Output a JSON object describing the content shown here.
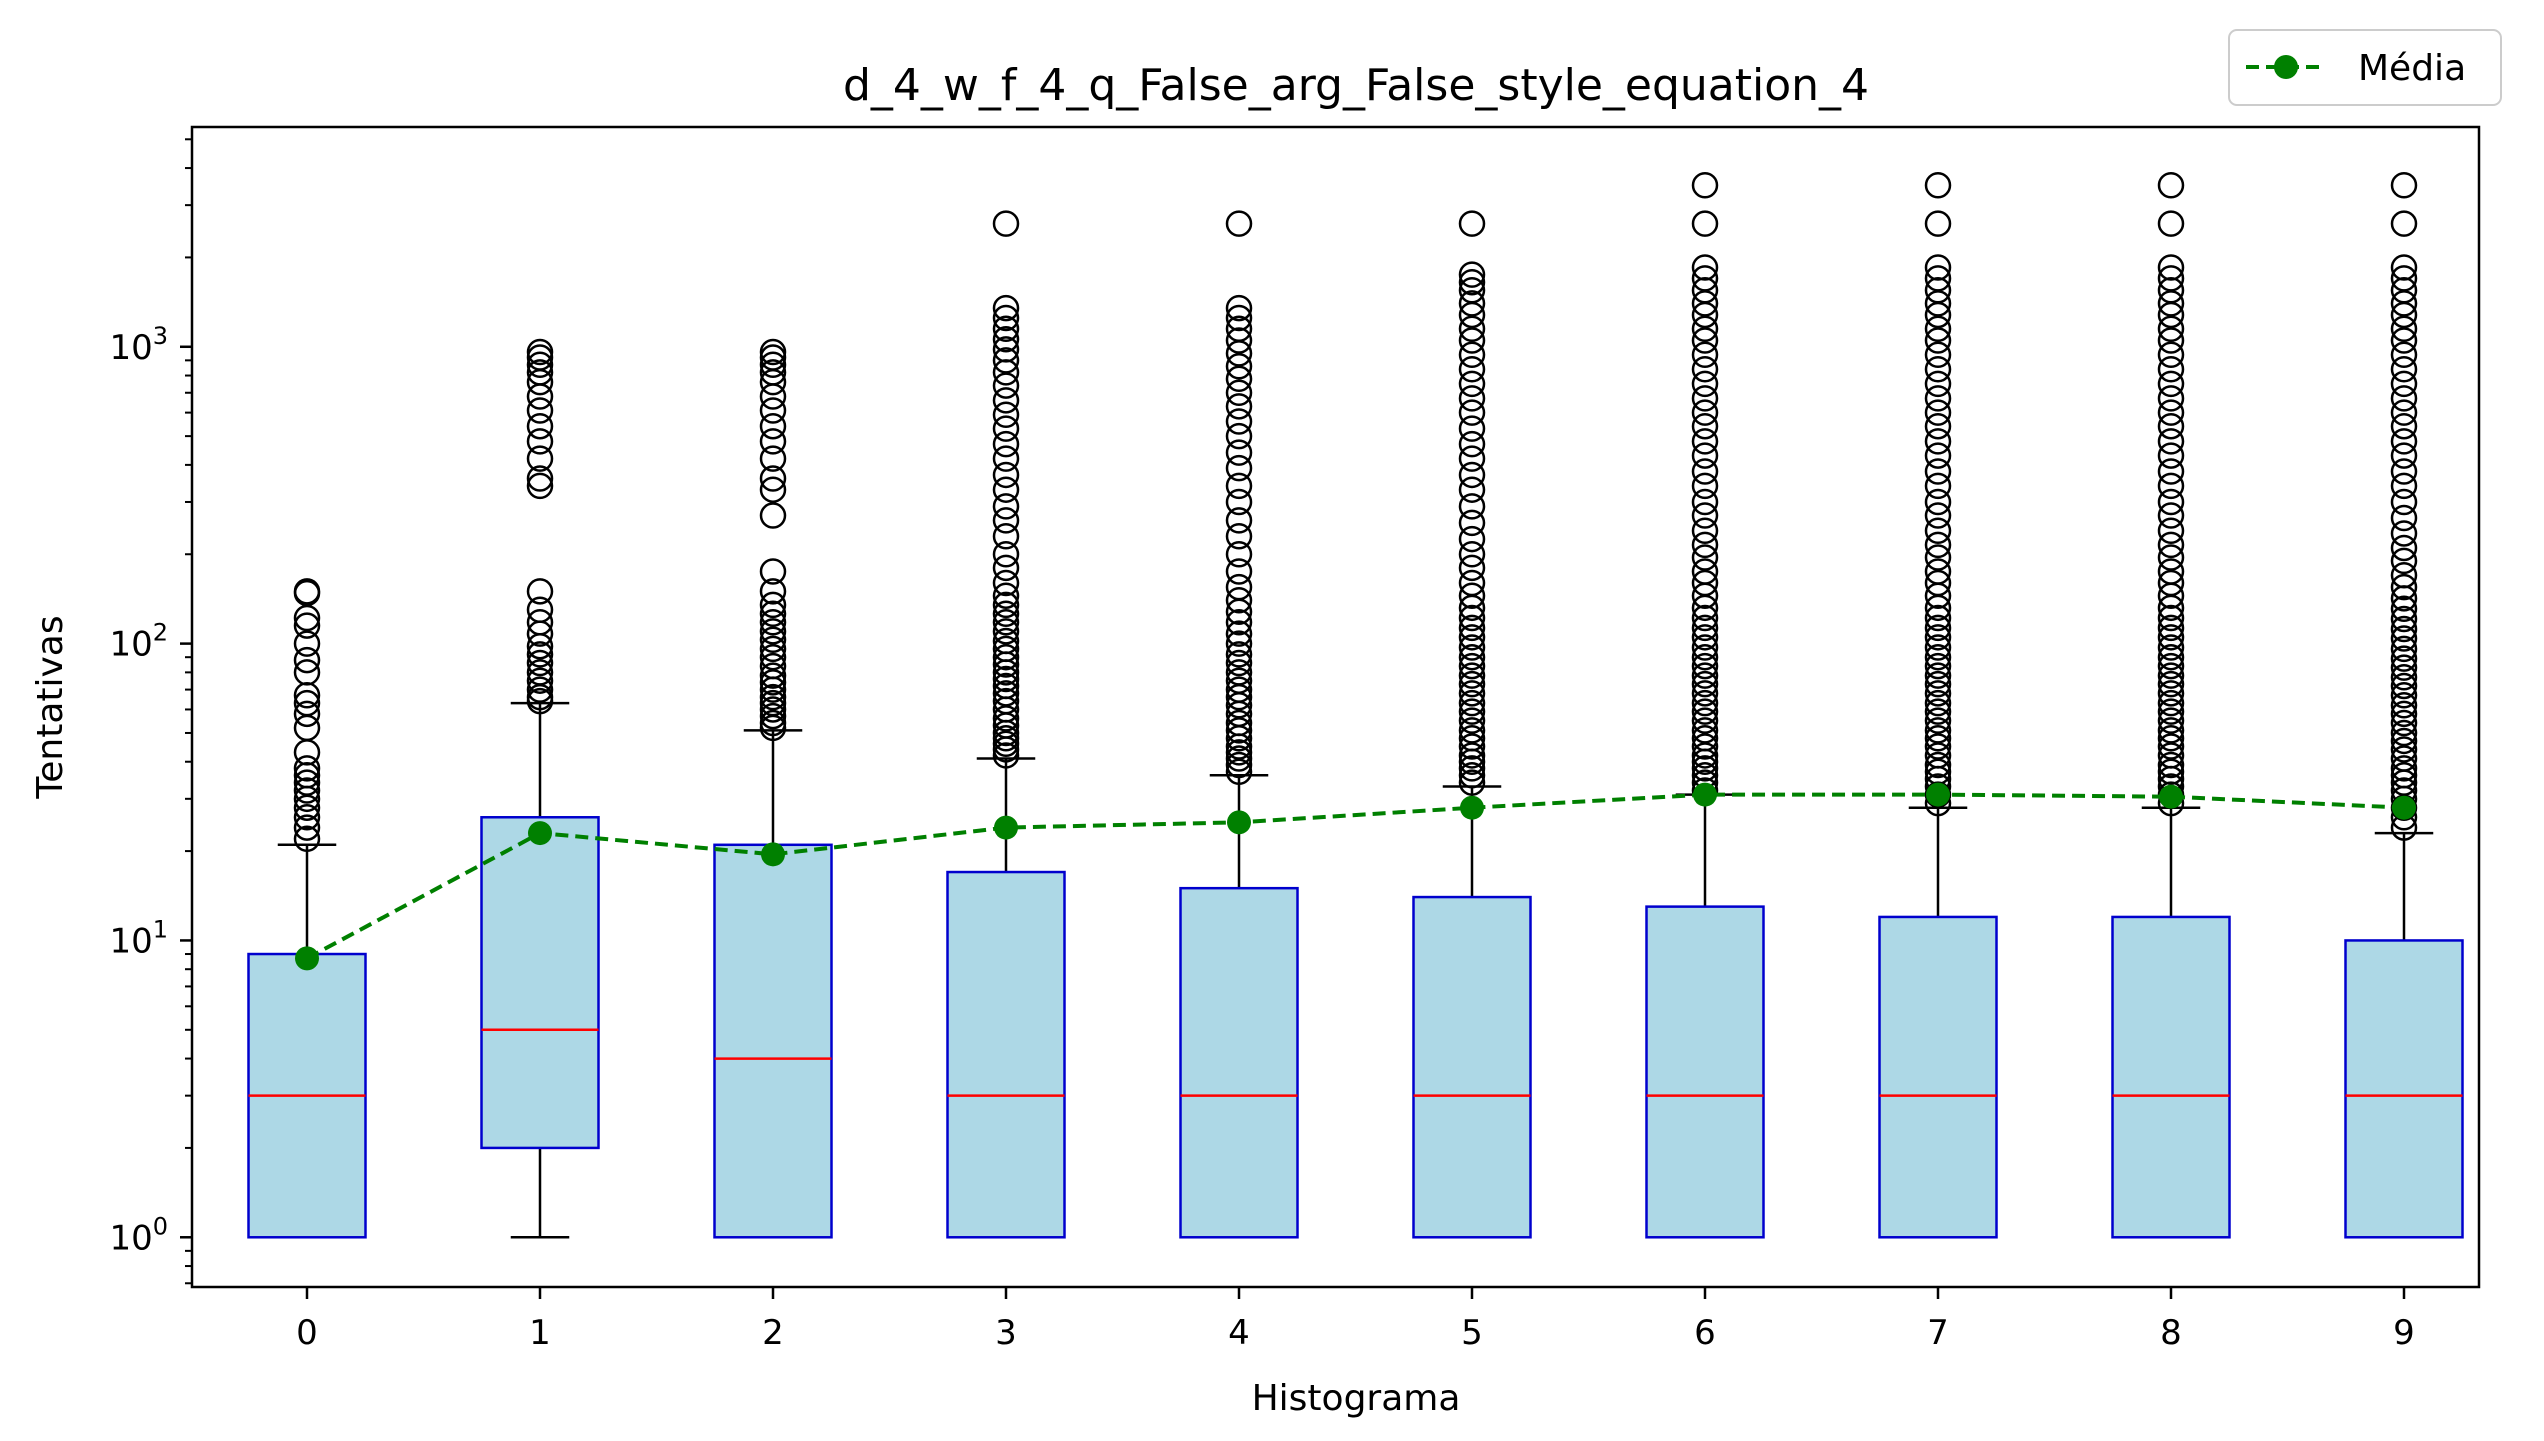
{
  "chart_data": {
    "type": "box",
    "title": "d_4_w_f_4_q_False_arg_False_style_equation_4",
    "xlabel": "Histograma",
    "ylabel": "Tentativas",
    "yscale": "log",
    "ylim": [
      0.68,
      5500
    ],
    "categories": [
      "0",
      "1",
      "2",
      "3",
      "4",
      "5",
      "6",
      "7",
      "8",
      "9"
    ],
    "y_ticks": [
      {
        "value": 1,
        "base": "10",
        "exp": "0"
      },
      {
        "value": 10,
        "base": "10",
        "exp": "1"
      },
      {
        "value": 100,
        "base": "10",
        "exp": "2"
      },
      {
        "value": 1000,
        "base": "10",
        "exp": "3"
      }
    ],
    "boxes": [
      {
        "q1": 1,
        "median": 3,
        "q3": 9,
        "whisker_low": 1,
        "whisker_high": 21
      },
      {
        "q1": 2,
        "median": 5,
        "q3": 26,
        "whisker_low": 1,
        "whisker_high": 63
      },
      {
        "q1": 1,
        "median": 4,
        "q3": 21,
        "whisker_low": 1,
        "whisker_high": 51
      },
      {
        "q1": 1,
        "median": 3,
        "q3": 17,
        "whisker_low": 1,
        "whisker_high": 41
      },
      {
        "q1": 1,
        "median": 3,
        "q3": 15,
        "whisker_low": 1,
        "whisker_high": 36
      },
      {
        "q1": 1,
        "median": 3,
        "q3": 14,
        "whisker_low": 1,
        "whisker_high": 33
      },
      {
        "q1": 1,
        "median": 3,
        "q3": 13,
        "whisker_low": 1,
        "whisker_high": 31
      },
      {
        "q1": 1,
        "median": 3,
        "q3": 12,
        "whisker_low": 1,
        "whisker_high": 28
      },
      {
        "q1": 1,
        "median": 3,
        "q3": 12,
        "whisker_low": 1,
        "whisker_high": 28
      },
      {
        "q1": 1,
        "median": 3,
        "q3": 10,
        "whisker_low": 1,
        "whisker_high": 23
      }
    ],
    "outliers": [
      [
        22,
        24,
        26,
        28,
        30,
        32,
        34,
        36,
        38,
        43,
        52,
        58,
        63,
        67,
        80,
        88,
        100,
        115,
        122,
        148,
        150
      ],
      [
        64,
        66,
        70,
        75,
        80,
        86,
        92,
        98,
        108,
        118,
        130,
        150,
        340,
        360,
        420,
        480,
        540,
        610,
        680,
        760,
        820,
        870,
        920,
        960
      ],
      [
        52,
        54,
        57,
        60,
        63,
        66,
        70,
        74,
        78,
        84,
        90,
        96,
        103,
        110,
        118,
        126,
        135,
        150,
        175,
        270,
        330,
        360,
        420,
        480,
        540,
        610,
        680,
        760,
        820,
        870,
        920,
        960
      ],
      [
        42,
        44,
        46,
        48,
        50,
        53,
        56,
        60,
        64,
        68,
        72,
        76,
        80,
        85,
        90,
        96,
        102,
        110,
        118,
        126,
        135,
        145,
        160,
        180,
        200,
        230,
        260,
        290,
        330,
        370,
        420,
        470,
        530,
        590,
        660,
        740,
        820,
        900,
        980,
        1060,
        1150,
        1250,
        1350,
        2600
      ],
      [
        37,
        39,
        41,
        43,
        45,
        48,
        51,
        54,
        58,
        62,
        66,
        70,
        75,
        80,
        86,
        92,
        100,
        108,
        118,
        128,
        140,
        155,
        175,
        200,
        230,
        260,
        300,
        340,
        390,
        440,
        500,
        560,
        630,
        700,
        780,
        860,
        950,
        1050,
        1150,
        1250,
        1350,
        2600
      ],
      [
        34,
        36,
        38,
        40,
        42,
        45,
        48,
        51,
        55,
        59,
        63,
        68,
        73,
        78,
        84,
        90,
        97,
        105,
        113,
        122,
        132,
        145,
        160,
        180,
        200,
        225,
        255,
        290,
        330,
        370,
        420,
        470,
        530,
        600,
        670,
        750,
        840,
        940,
        1050,
        1150,
        1280,
        1400,
        1550,
        1650,
        1750,
        2600
      ],
      [
        32,
        34,
        36,
        38,
        40,
        42,
        45,
        48,
        51,
        55,
        59,
        63,
        68,
        73,
        78,
        84,
        90,
        97,
        105,
        113,
        122,
        132,
        145,
        160,
        175,
        195,
        215,
        240,
        270,
        300,
        340,
        380,
        430,
        480,
        540,
        600,
        670,
        750,
        840,
        940,
        1050,
        1150,
        1280,
        1400,
        1550,
        1700,
        1850,
        2600,
        3500
      ],
      [
        29,
        31,
        33,
        35,
        37,
        39,
        42,
        45,
        48,
        51,
        55,
        59,
        63,
        68,
        73,
        78,
        84,
        90,
        97,
        105,
        113,
        122,
        132,
        145,
        160,
        175,
        195,
        215,
        240,
        270,
        300,
        340,
        380,
        430,
        480,
        540,
        600,
        670,
        750,
        840,
        940,
        1050,
        1150,
        1280,
        1400,
        1550,
        1700,
        1850,
        2600,
        3500
      ],
      [
        29,
        31,
        33,
        35,
        37,
        39,
        42,
        45,
        48,
        51,
        55,
        59,
        63,
        68,
        73,
        78,
        84,
        90,
        97,
        105,
        113,
        122,
        132,
        145,
        160,
        175,
        195,
        215,
        240,
        270,
        300,
        340,
        380,
        430,
        480,
        540,
        600,
        670,
        750,
        840,
        940,
        1050,
        1150,
        1280,
        1400,
        1550,
        1700,
        1850,
        2600,
        3500
      ],
      [
        24,
        26,
        28,
        30,
        32,
        34,
        36,
        38,
        41,
        44,
        47,
        50,
        54,
        58,
        62,
        67,
        72,
        77,
        83,
        89,
        96,
        104,
        112,
        121,
        131,
        142,
        155,
        170,
        190,
        210,
        235,
        265,
        300,
        340,
        380,
        430,
        480,
        540,
        600,
        670,
        750,
        840,
        940,
        1050,
        1150,
        1280,
        1400,
        1550,
        1700,
        1850,
        2600,
        3500
      ]
    ],
    "series": [
      {
        "name": "Média",
        "values": [
          8.7,
          23,
          19.5,
          24,
          25,
          28,
          31,
          31,
          30.5,
          28
        ]
      }
    ],
    "colors": {
      "box_fill": "#add8e6",
      "box_edge": "#0000cd",
      "median": "#ff0000",
      "whisker": "#000000",
      "mean": "#008000"
    },
    "legend": {
      "position": "top-right"
    },
    "grid": false
  }
}
